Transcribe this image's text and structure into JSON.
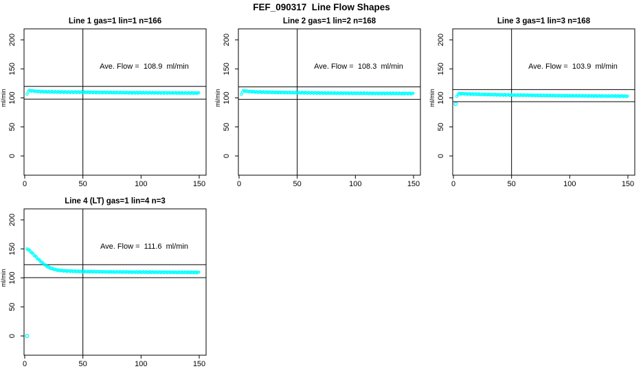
{
  "page_title": "FEF_090317  Line Flow Shapes",
  "colors": {
    "series": "#00ffff",
    "axis": "#000000",
    "text": "#000000",
    "background": "#ffffff"
  },
  "axes": {
    "xlim": [
      0,
      150
    ],
    "ylim": [
      0,
      200
    ],
    "x_ticks": [
      0,
      50,
      100,
      150
    ],
    "y_ticks": [
      0,
      50,
      100,
      150,
      200
    ],
    "ylabel": "ml/min",
    "xlabel": ""
  },
  "chart_data": [
    {
      "type": "scatter",
      "title": "Line 1 gas=1 lin=1 n=166",
      "annotation": "Ave. Flow =  108.9  ml/min",
      "ave_flow_ml_min": 108.9,
      "n": 166,
      "marker": "open-circle",
      "ref_lines": {
        "vertical_x": 50,
        "upper_hline": 119.8,
        "lower_hline": 98.0
      },
      "xlim": [
        0,
        150
      ],
      "ylim": [
        0,
        200
      ],
      "x_ticks": [
        0,
        50,
        100,
        150
      ],
      "y_ticks": [
        0,
        50,
        100,
        150,
        200
      ],
      "ylabel": "ml/min",
      "points": [
        [
          2,
          106.5
        ],
        [
          3,
          111.5
        ],
        [
          4,
          113
        ],
        [
          5,
          112.5
        ],
        [
          7,
          112
        ],
        [
          10,
          111.3
        ],
        [
          15,
          110.8
        ],
        [
          20,
          110.5
        ],
        [
          30,
          110.2
        ],
        [
          40,
          110
        ],
        [
          50,
          109.8
        ],
        [
          60,
          109.6
        ],
        [
          70,
          109.4
        ],
        [
          80,
          109.2
        ],
        [
          90,
          109
        ],
        [
          100,
          108.9
        ],
        [
          110,
          108.8
        ],
        [
          120,
          108.7
        ],
        [
          130,
          108.6
        ],
        [
          140,
          108.5
        ],
        [
          150,
          108.4
        ]
      ],
      "outliers": []
    },
    {
      "type": "scatter",
      "title": "Line 2 gas=1 lin=2 n=168",
      "annotation": "Ave. Flow =  108.3  ml/min",
      "ave_flow_ml_min": 108.3,
      "n": 168,
      "marker": "open-circle",
      "ref_lines": {
        "vertical_x": 50,
        "upper_hline": 119.1,
        "lower_hline": 97.5
      },
      "xlim": [
        0,
        150
      ],
      "ylim": [
        0,
        200
      ],
      "x_ticks": [
        0,
        50,
        100,
        150
      ],
      "y_ticks": [
        0,
        50,
        100,
        150,
        200
      ],
      "ylabel": "ml/min",
      "points": [
        [
          2,
          106
        ],
        [
          3,
          111
        ],
        [
          4,
          112.5
        ],
        [
          5,
          112
        ],
        [
          7,
          111.3
        ],
        [
          10,
          110.8
        ],
        [
          15,
          110.3
        ],
        [
          20,
          110
        ],
        [
          30,
          109.6
        ],
        [
          40,
          109.3
        ],
        [
          50,
          109
        ],
        [
          60,
          108.8
        ],
        [
          70,
          108.5
        ],
        [
          80,
          108.3
        ],
        [
          90,
          108.1
        ],
        [
          100,
          108
        ],
        [
          110,
          107.9
        ],
        [
          120,
          107.8
        ],
        [
          130,
          107.7
        ],
        [
          140,
          107.6
        ],
        [
          150,
          107.5
        ]
      ],
      "outliers": []
    },
    {
      "type": "scatter",
      "title": "Line 3 gas=1 lin=3 n=168",
      "annotation": "Ave. Flow =  103.9  ml/min",
      "ave_flow_ml_min": 103.9,
      "n": 168,
      "marker": "open-circle",
      "ref_lines": {
        "vertical_x": 50,
        "upper_hline": 114.3,
        "lower_hline": 93.5
      },
      "xlim": [
        0,
        150
      ],
      "ylim": [
        0,
        200
      ],
      "x_ticks": [
        0,
        50,
        100,
        150
      ],
      "y_ticks": [
        0,
        50,
        100,
        150,
        200
      ],
      "ylabel": "ml/min",
      "points": [
        [
          3,
          103
        ],
        [
          4,
          106.5
        ],
        [
          5,
          107.5
        ],
        [
          7,
          107.3
        ],
        [
          10,
          107
        ],
        [
          15,
          106.6
        ],
        [
          20,
          106.3
        ],
        [
          30,
          105.8
        ],
        [
          40,
          105.4
        ],
        [
          50,
          105
        ],
        [
          60,
          104.7
        ],
        [
          70,
          104.4
        ],
        [
          80,
          104.1
        ],
        [
          90,
          103.9
        ],
        [
          100,
          103.7
        ],
        [
          110,
          103.5
        ],
        [
          120,
          103.3
        ],
        [
          130,
          103.2
        ],
        [
          140,
          103.1
        ],
        [
          150,
          103
        ]
      ],
      "outliers": [
        [
          2,
          89.5
        ]
      ]
    },
    {
      "type": "scatter",
      "title": "Line 4 (LT) gas=1 lin=4 n=3",
      "annotation": "Ave. Flow =  111.6  ml/min",
      "ave_flow_ml_min": 111.6,
      "n": 3,
      "marker": "open-circle",
      "ref_lines": {
        "vertical_x": 50,
        "upper_hline": 122.8,
        "lower_hline": 100.4
      },
      "xlim": [
        0,
        150
      ],
      "ylim": [
        0,
        200
      ],
      "x_ticks": [
        0,
        50,
        100,
        150
      ],
      "y_ticks": [
        0,
        50,
        100,
        150,
        200
      ],
      "ylabel": "ml/min",
      "points": [
        [
          2,
          150
        ],
        [
          3,
          149
        ],
        [
          4,
          147.5
        ],
        [
          5,
          145.5
        ],
        [
          6,
          143.5
        ],
        [
          7,
          141.5
        ],
        [
          8,
          139.5
        ],
        [
          9,
          137.5
        ],
        [
          10,
          135.5
        ],
        [
          12,
          131.5
        ],
        [
          14,
          128
        ],
        [
          16,
          124.5
        ],
        [
          18,
          121.5
        ],
        [
          20,
          119
        ],
        [
          22,
          117
        ],
        [
          25,
          115
        ],
        [
          28,
          113.5
        ],
        [
          32,
          112.5
        ],
        [
          36,
          112
        ],
        [
          40,
          111.6
        ],
        [
          50,
          111
        ],
        [
          60,
          110.7
        ],
        [
          70,
          110.4
        ],
        [
          80,
          110.2
        ],
        [
          90,
          110.1
        ],
        [
          100,
          110
        ],
        [
          110,
          109.9
        ],
        [
          120,
          109.8
        ],
        [
          130,
          109.7
        ],
        [
          140,
          109.6
        ],
        [
          150,
          109.5
        ]
      ],
      "outliers": [
        [
          2,
          0
        ]
      ]
    }
  ]
}
